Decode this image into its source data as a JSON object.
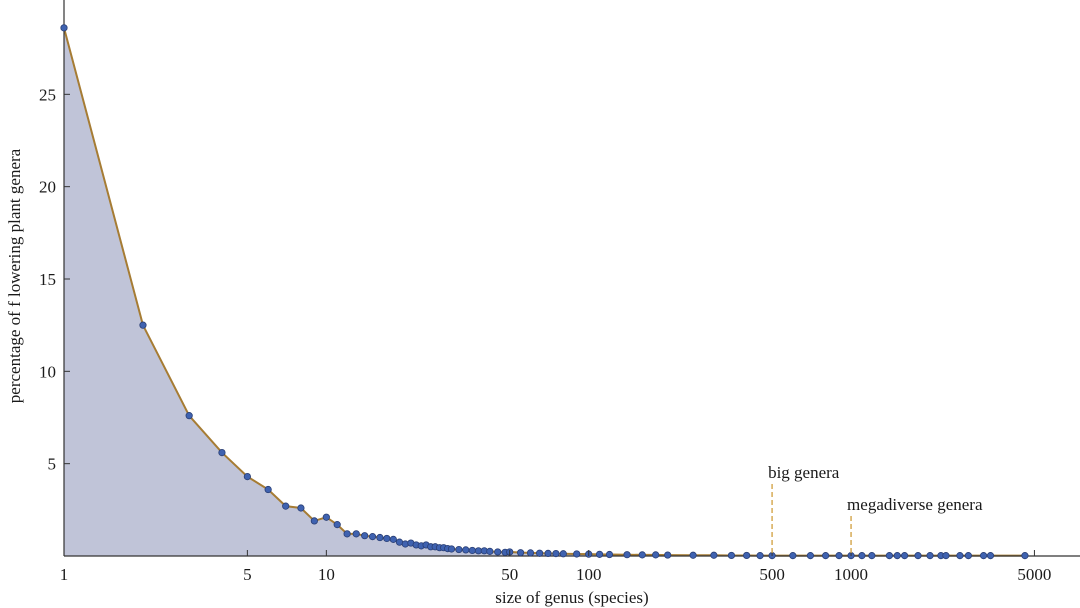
{
  "chart_data": {
    "type": "area",
    "xlabel": "size of genus (species)",
    "ylabel": "percentage of f lowering plant genera",
    "x_scale": "log",
    "xlim": [
      1,
      10000
    ],
    "ylim": [
      0,
      28.7
    ],
    "x_ticks": [
      1,
      5,
      10,
      50,
      100,
      500,
      1000,
      5000
    ],
    "x_tick_labels": [
      "1",
      "5",
      "10",
      "50",
      "100",
      "500",
      "1000",
      "5000"
    ],
    "y_ticks": [
      5,
      10,
      15,
      20,
      25
    ],
    "y_tick_labels": [
      "5",
      "10",
      "15",
      "20",
      "25"
    ],
    "grid": false,
    "colors": {
      "fill": "#c0c4d8",
      "line": "#a67c34",
      "marker": "#3f62b0",
      "marker_edge": "#2a3f75",
      "annotation": "#d4a54a"
    },
    "annotations": [
      {
        "label": "big genera",
        "x": 500
      },
      {
        "label": "megadiverse genera",
        "x": 1000
      }
    ],
    "series": [
      {
        "points": [
          [
            1,
            28.6
          ],
          [
            2,
            12.5
          ],
          [
            3,
            7.6
          ],
          [
            4,
            5.6
          ],
          [
            5,
            4.3
          ],
          [
            6,
            3.6
          ],
          [
            7,
            2.7
          ],
          [
            8,
            2.6
          ],
          [
            9,
            1.9
          ],
          [
            10,
            2.1
          ],
          [
            11,
            1.7
          ],
          [
            12,
            1.2
          ],
          [
            13,
            1.2
          ],
          [
            14,
            1.1
          ],
          [
            15,
            1.05
          ],
          [
            16,
            1.0
          ],
          [
            17,
            0.95
          ],
          [
            18,
            0.9
          ],
          [
            19,
            0.75
          ],
          [
            20,
            0.65
          ],
          [
            21,
            0.7
          ],
          [
            22,
            0.6
          ],
          [
            23,
            0.55
          ],
          [
            24,
            0.6
          ],
          [
            25,
            0.5
          ],
          [
            26,
            0.5
          ],
          [
            27,
            0.45
          ],
          [
            28,
            0.45
          ],
          [
            29,
            0.4
          ],
          [
            30,
            0.38
          ],
          [
            32,
            0.35
          ],
          [
            34,
            0.33
          ],
          [
            36,
            0.3
          ],
          [
            38,
            0.28
          ],
          [
            40,
            0.28
          ],
          [
            42,
            0.25
          ],
          [
            45,
            0.22
          ],
          [
            48,
            0.2
          ],
          [
            50,
            0.22
          ],
          [
            55,
            0.18
          ],
          [
            60,
            0.17
          ],
          [
            65,
            0.15
          ],
          [
            70,
            0.14
          ],
          [
            75,
            0.13
          ],
          [
            80,
            0.12
          ],
          [
            90,
            0.11
          ],
          [
            100,
            0.1
          ],
          [
            110,
            0.09
          ],
          [
            120,
            0.08
          ],
          [
            140,
            0.07
          ],
          [
            160,
            0.06
          ],
          [
            180,
            0.06
          ],
          [
            200,
            0.05
          ],
          [
            250,
            0.04
          ],
          [
            300,
            0.04
          ],
          [
            350,
            0.03
          ],
          [
            400,
            0.03
          ],
          [
            450,
            0.02
          ],
          [
            500,
            0.02
          ],
          [
            600,
            0.02
          ],
          [
            700,
            0.02
          ],
          [
            800,
            0.02
          ],
          [
            900,
            0.02
          ],
          [
            1000,
            0.02
          ],
          [
            1100,
            0.02
          ],
          [
            1200,
            0.02
          ],
          [
            1400,
            0.02
          ],
          [
            1500,
            0.02
          ],
          [
            1600,
            0.02
          ],
          [
            1800,
            0.02
          ],
          [
            2000,
            0.02
          ],
          [
            2200,
            0.02
          ],
          [
            2300,
            0.02
          ],
          [
            2600,
            0.02
          ],
          [
            2800,
            0.02
          ],
          [
            3200,
            0.02
          ],
          [
            3400,
            0.02
          ],
          [
            4600,
            0.02
          ]
        ]
      }
    ]
  }
}
